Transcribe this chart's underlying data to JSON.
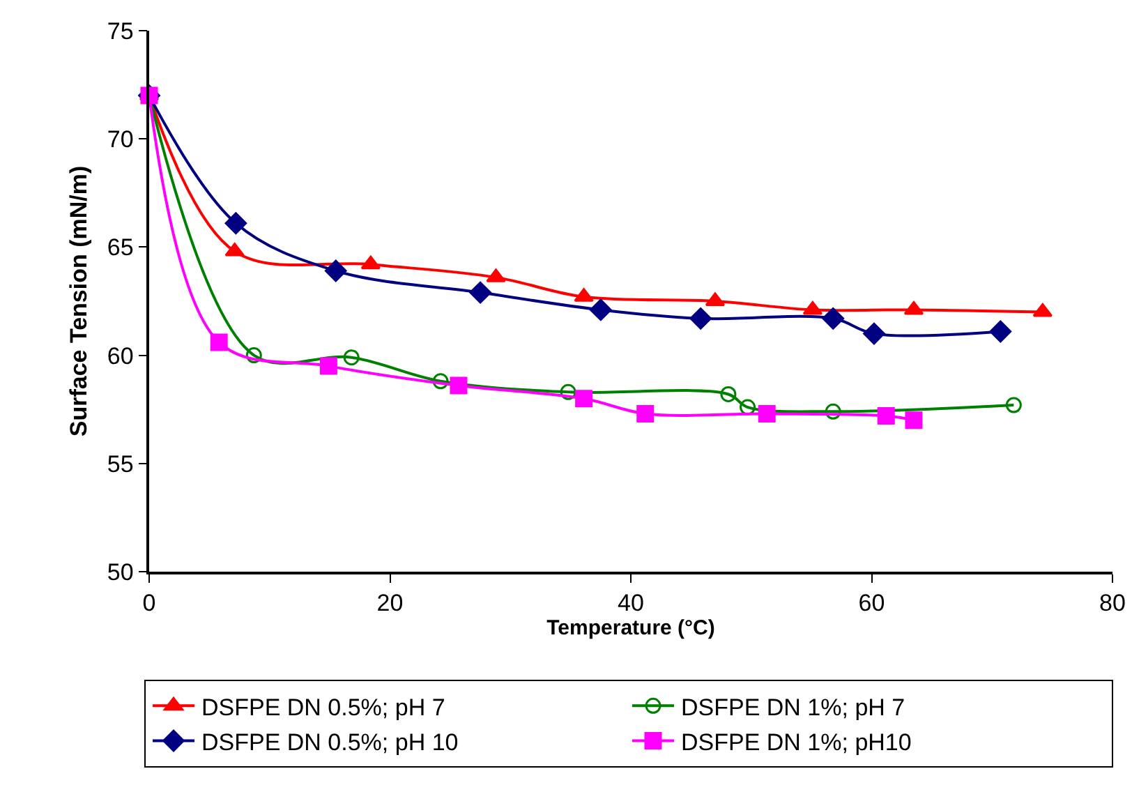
{
  "chart_data": {
    "type": "line",
    "xlabel": "Temperature (°C)",
    "ylabel": "Surface Tension (mN/m)",
    "xlim": [
      0,
      80
    ],
    "xticks": [
      0,
      20,
      40,
      60,
      80
    ],
    "ylim": [
      50,
      75
    ],
    "yticks": [
      50,
      55,
      60,
      65,
      70,
      75
    ],
    "grid": false,
    "legend": "bottom",
    "line_style": "solid",
    "series": [
      {
        "name": "DSFPE DN 0.5%; pH 7",
        "color": "#ff0000",
        "marker": "triangle",
        "x": [
          0,
          7.1,
          18.4,
          28.8,
          36.1,
          47.0,
          55.1,
          63.5,
          74.2
        ],
        "values": [
          72,
          64.8,
          64.2,
          63.6,
          62.7,
          62.5,
          62.1,
          62.1,
          62.0
        ]
      },
      {
        "name": "DSFPE DN 1%; pH 7",
        "color": "#008000",
        "marker": "circle",
        "x": [
          0,
          8.7,
          16.8,
          24.2,
          34.8,
          48.1,
          49.7,
          56.8,
          71.8
        ],
        "values": [
          72,
          60.0,
          59.9,
          58.8,
          58.3,
          58.2,
          57.6,
          57.4,
          57.7
        ]
      },
      {
        "name": "DSFPE DN 0.5%; pH 10",
        "color": "#000080",
        "marker": "diamond",
        "x": [
          0,
          7.2,
          15.5,
          27.5,
          37.5,
          45.8,
          56.8,
          60.2,
          70.7
        ],
        "values": [
          72,
          66.1,
          63.9,
          62.9,
          62.1,
          61.7,
          61.7,
          61.0,
          61.1
        ]
      },
      {
        "name": "DSFPE DN 1%; pH10",
        "color": "#ff00ff",
        "marker": "square",
        "x": [
          0,
          5.8,
          14.9,
          25.7,
          36.1,
          41.2,
          51.3,
          61.2,
          63.5
        ],
        "values": [
          72,
          60.6,
          59.5,
          58.6,
          58.0,
          57.3,
          57.3,
          57.2,
          57.0
        ]
      }
    ]
  }
}
